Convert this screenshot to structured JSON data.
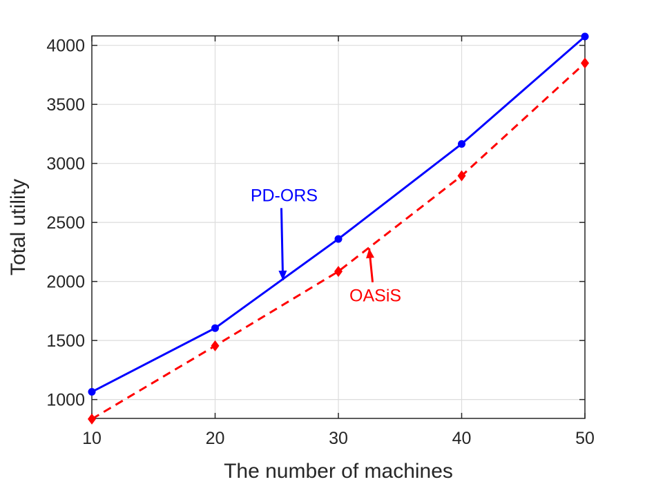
{
  "chart_data": {
    "type": "line",
    "xlabel": "The number of machines",
    "ylabel": "Total utility",
    "x": [
      10,
      20,
      30,
      40,
      50
    ],
    "xlim": [
      10,
      50
    ],
    "ylim": [
      840,
      4080
    ],
    "xticks": [
      10,
      20,
      30,
      40,
      50
    ],
    "yticks": [
      1000,
      1500,
      2000,
      2500,
      3000,
      3500,
      4000
    ],
    "grid": true,
    "series": [
      {
        "name": "PD-ORS",
        "values": [
          1065,
          1605,
          2360,
          3165,
          4075
        ],
        "color": "#0000ff",
        "line_style": "solid",
        "marker": "circle"
      },
      {
        "name": "OASiS",
        "values": [
          835,
          1455,
          2085,
          2895,
          3850
        ],
        "color": "#ff0000",
        "line_style": "dashed",
        "marker": "diamond"
      }
    ],
    "annotations": [
      {
        "text": "PD-ORS",
        "color": "#0000ff",
        "label_at": [
          25.6,
          2680
        ],
        "arrow_to": [
          25.5,
          2010
        ]
      },
      {
        "text": "OASiS",
        "color": "#ff0000",
        "label_at": [
          33.0,
          1830
        ],
        "arrow_to": [
          32.5,
          2280
        ]
      }
    ]
  }
}
